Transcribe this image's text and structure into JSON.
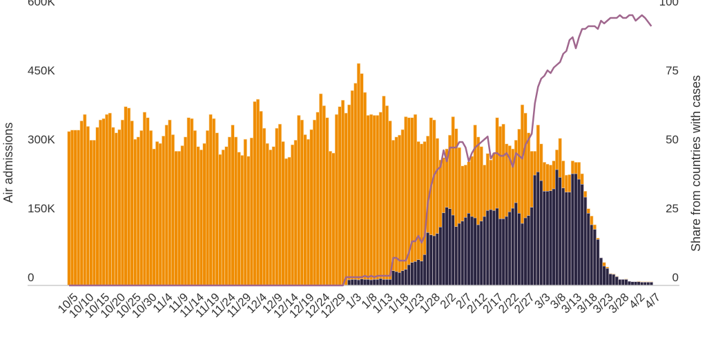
{
  "chart_data": {
    "type": "bar",
    "stacked": true,
    "xlabel": "",
    "ylabel": "Air admissions",
    "y2label": "Share from countries with cases",
    "ylim": [
      0,
      600000
    ],
    "y2lim": [
      0,
      100
    ],
    "yticks": [
      "0",
      "150K",
      "300K",
      "450K",
      "600K"
    ],
    "y2ticks": [
      "0",
      "25",
      "50",
      "75",
      "100"
    ],
    "x_frequency": "daily",
    "x_ticks": [
      "10/5",
      "10/10",
      "10/15",
      "10/20",
      "10/25",
      "10/30",
      "11/4",
      "11/9",
      "11/14",
      "11/19",
      "11/24",
      "11/29",
      "12/4",
      "12/9",
      "12/14",
      "12/19",
      "12/24",
      "12/29",
      "1/3",
      "1/8",
      "1/13",
      "1/18",
      "1/23",
      "1/28",
      "2/2",
      "2/7",
      "2/12",
      "2/17",
      "2/22",
      "2/27",
      "3/3",
      "3/8",
      "3/13",
      "3/18",
      "3/23",
      "3/28",
      "4/2",
      "4/7"
    ],
    "grid": false,
    "colors": {
      "total": "#ef8c00",
      "from_countries_with_cases": "#2a2541",
      "share_line": "#a0678e",
      "axis": "#cccccc"
    },
    "total_admissions_thousands": [
      335,
      338,
      338,
      338,
      358,
      372,
      346,
      316,
      316,
      344,
      360,
      363,
      372,
      375,
      344,
      332,
      339,
      360,
      389,
      386,
      358,
      318,
      323,
      337,
      377,
      365,
      337,
      297,
      313,
      309,
      325,
      349,
      360,
      328,
      292,
      292,
      304,
      323,
      365,
      363,
      337,
      302,
      295,
      309,
      337,
      372,
      363,
      332,
      285,
      295,
      302,
      323,
      349,
      323,
      290,
      283,
      318,
      281,
      321,
      400,
      405,
      379,
      342,
      309,
      295,
      302,
      342,
      351,
      313,
      276,
      279,
      306,
      316,
      370,
      360,
      328,
      318,
      339,
      360,
      377,
      417,
      391,
      365,
      292,
      288,
      372,
      389,
      403,
      375,
      393,
      424,
      440,
      483,
      461,
      420,
      370,
      372,
      370,
      370,
      377,
      412,
      391,
      358,
      316,
      323,
      327,
      339,
      367,
      365,
      365,
      372,
      313,
      308,
      313,
      325,
      365,
      360,
      320,
      273,
      278,
      297,
      327,
      367,
      341,
      300,
      260,
      262,
      269,
      281,
      349,
      323,
      302,
      262,
      287,
      273,
      288,
      365,
      346,
      351,
      308,
      304,
      297,
      316,
      340,
      393,
      375,
      332,
      292,
      292,
      349,
      308,
      268,
      264,
      262,
      271,
      295,
      320,
      271,
      240,
      241,
      271,
      268,
      268,
      243,
      205,
      167,
      151,
      132,
      103,
      60,
      50,
      40,
      26,
      25,
      20,
      13,
      13,
      14,
      9,
      8,
      8,
      9,
      8,
      8,
      8,
      8
    ],
    "admissions_from_countries_with_cases_thousands": [
      0,
      0,
      0,
      0,
      0,
      0,
      0,
      0,
      0,
      0,
      0,
      0,
      0,
      0,
      0,
      0,
      0,
      0,
      0,
      0,
      0,
      0,
      0,
      0,
      0,
      0,
      0,
      0,
      0,
      0,
      0,
      0,
      0,
      0,
      0,
      0,
      0,
      0,
      0,
      0,
      0,
      0,
      0,
      0,
      0,
      0,
      0,
      0,
      0,
      0,
      0,
      0,
      0,
      0,
      0,
      0,
      0,
      0,
      0,
      0,
      0,
      0,
      0,
      0,
      0,
      0,
      0,
      0,
      0,
      0,
      0,
      0,
      0,
      0,
      0,
      0,
      0,
      0,
      0,
      0,
      0,
      0,
      0,
      0,
      0,
      0,
      0,
      0,
      0,
      12,
      13,
      13,
      12,
      14,
      13,
      13,
      12,
      13,
      13,
      15,
      13,
      13,
      13,
      32,
      30,
      28,
      32,
      35,
      45,
      50,
      52,
      56,
      53,
      67,
      115,
      110,
      108,
      113,
      127,
      158,
      170,
      167,
      153,
      128,
      135,
      140,
      148,
      157,
      150,
      147,
      132,
      140,
      150,
      163,
      165,
      163,
      168,
      145,
      145,
      150,
      160,
      168,
      180,
      157,
      135,
      147,
      152,
      170,
      240,
      247,
      228,
      205,
      205,
      206,
      210,
      252,
      235,
      212,
      203,
      203,
      243,
      243,
      231,
      220,
      192,
      157,
      132,
      122,
      100,
      60,
      42,
      37,
      25,
      24,
      19,
      13,
      13,
      13,
      9,
      9,
      8,
      8,
      7,
      7,
      7,
      7
    ],
    "share_from_countries_with_cases_pct": [
      0,
      0,
      0,
      0,
      0,
      0,
      0,
      0,
      0,
      0,
      0,
      0,
      0,
      0,
      0,
      0,
      0,
      0,
      0,
      0,
      0,
      0,
      0,
      0,
      0,
      0,
      0,
      0,
      0,
      0,
      0,
      0,
      0,
      0,
      0,
      0,
      0,
      0,
      0,
      0,
      0,
      0,
      0,
      0,
      0,
      0,
      0,
      0,
      0,
      0,
      0,
      0,
      0,
      0,
      0,
      0,
      0,
      0,
      0,
      0,
      0,
      0,
      0,
      0,
      0,
      0,
      0,
      0,
      0,
      0,
      0,
      0,
      0,
      0,
      0,
      0,
      0,
      0,
      0,
      0,
      0,
      0,
      0,
      0,
      0,
      0,
      0,
      0,
      3,
      3,
      3,
      3,
      3,
      3,
      3.5,
      3,
      3.5,
      3,
      3.5,
      3.5,
      3.5,
      3.5,
      3.5,
      10,
      10,
      9,
      9,
      9,
      12,
      16,
      16,
      18,
      15.5,
      18,
      30,
      36,
      40,
      42,
      43,
      49,
      45,
      50,
      50,
      50,
      52,
      52,
      50,
      45,
      48,
      50,
      51,
      52,
      53,
      54,
      46,
      48,
      48,
      47,
      47,
      48,
      46,
      43,
      48,
      47,
      46,
      51,
      53,
      55,
      66,
      72,
      75,
      76,
      78,
      77,
      79,
      80,
      81,
      84,
      85,
      89,
      90,
      86,
      90,
      93,
      93,
      94,
      94,
      94,
      93,
      96,
      95,
      96,
      97,
      97,
      97,
      98,
      97,
      97,
      98,
      98,
      96,
      97,
      98,
      97,
      95.5,
      94
    ]
  }
}
